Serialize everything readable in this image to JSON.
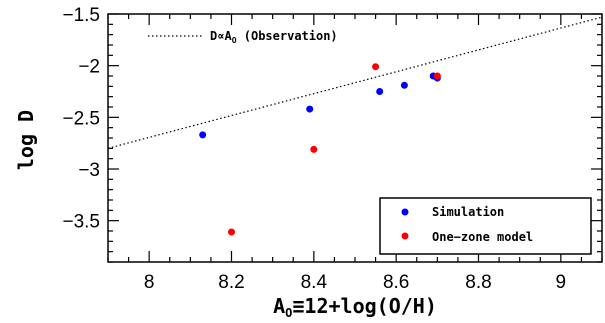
{
  "chart_data": {
    "type": "scatter",
    "title": "",
    "xlabel_main": "A",
    "xlabel_sub": "O",
    "xlabel_rest": "≡12+log(O/H)",
    "ylabel": "log D",
    "xlim": [
      7.9,
      9.1
    ],
    "ylim": [
      -3.9,
      -1.5
    ],
    "xticks": [
      8,
      8.2,
      8.4,
      8.6,
      8.8,
      9
    ],
    "xtick_labels": [
      "8",
      "8.2",
      "8.4",
      "8.6",
      "8.8",
      "9"
    ],
    "yticks": [
      -1.5,
      -2,
      -2.5,
      -3,
      -3.5
    ],
    "ytick_labels": [
      "−1.5",
      "−2",
      "−2.5",
      "−3",
      "−3.5"
    ],
    "line_legend": {
      "main": "D∝A",
      "sub": "O",
      "rest": " (Observation)"
    },
    "line": {
      "style": "dotted",
      "x": [
        7.9,
        9.1
      ],
      "y": [
        -2.8,
        -1.53
      ]
    },
    "series": [
      {
        "name": "Simulation",
        "color": "#0000ff",
        "x": [
          8.13,
          8.39,
          8.56,
          8.62,
          8.69,
          8.7
        ],
        "y": [
          -2.67,
          -2.42,
          -2.25,
          -2.19,
          -2.1,
          -2.12
        ]
      },
      {
        "name": "One−zone model",
        "color": "#ff0000",
        "x": [
          8.2,
          8.4,
          8.55,
          8.7
        ],
        "y": [
          -3.61,
          -2.81,
          -2.01,
          -2.1
        ]
      }
    ],
    "legend_position": "bottom-right"
  }
}
